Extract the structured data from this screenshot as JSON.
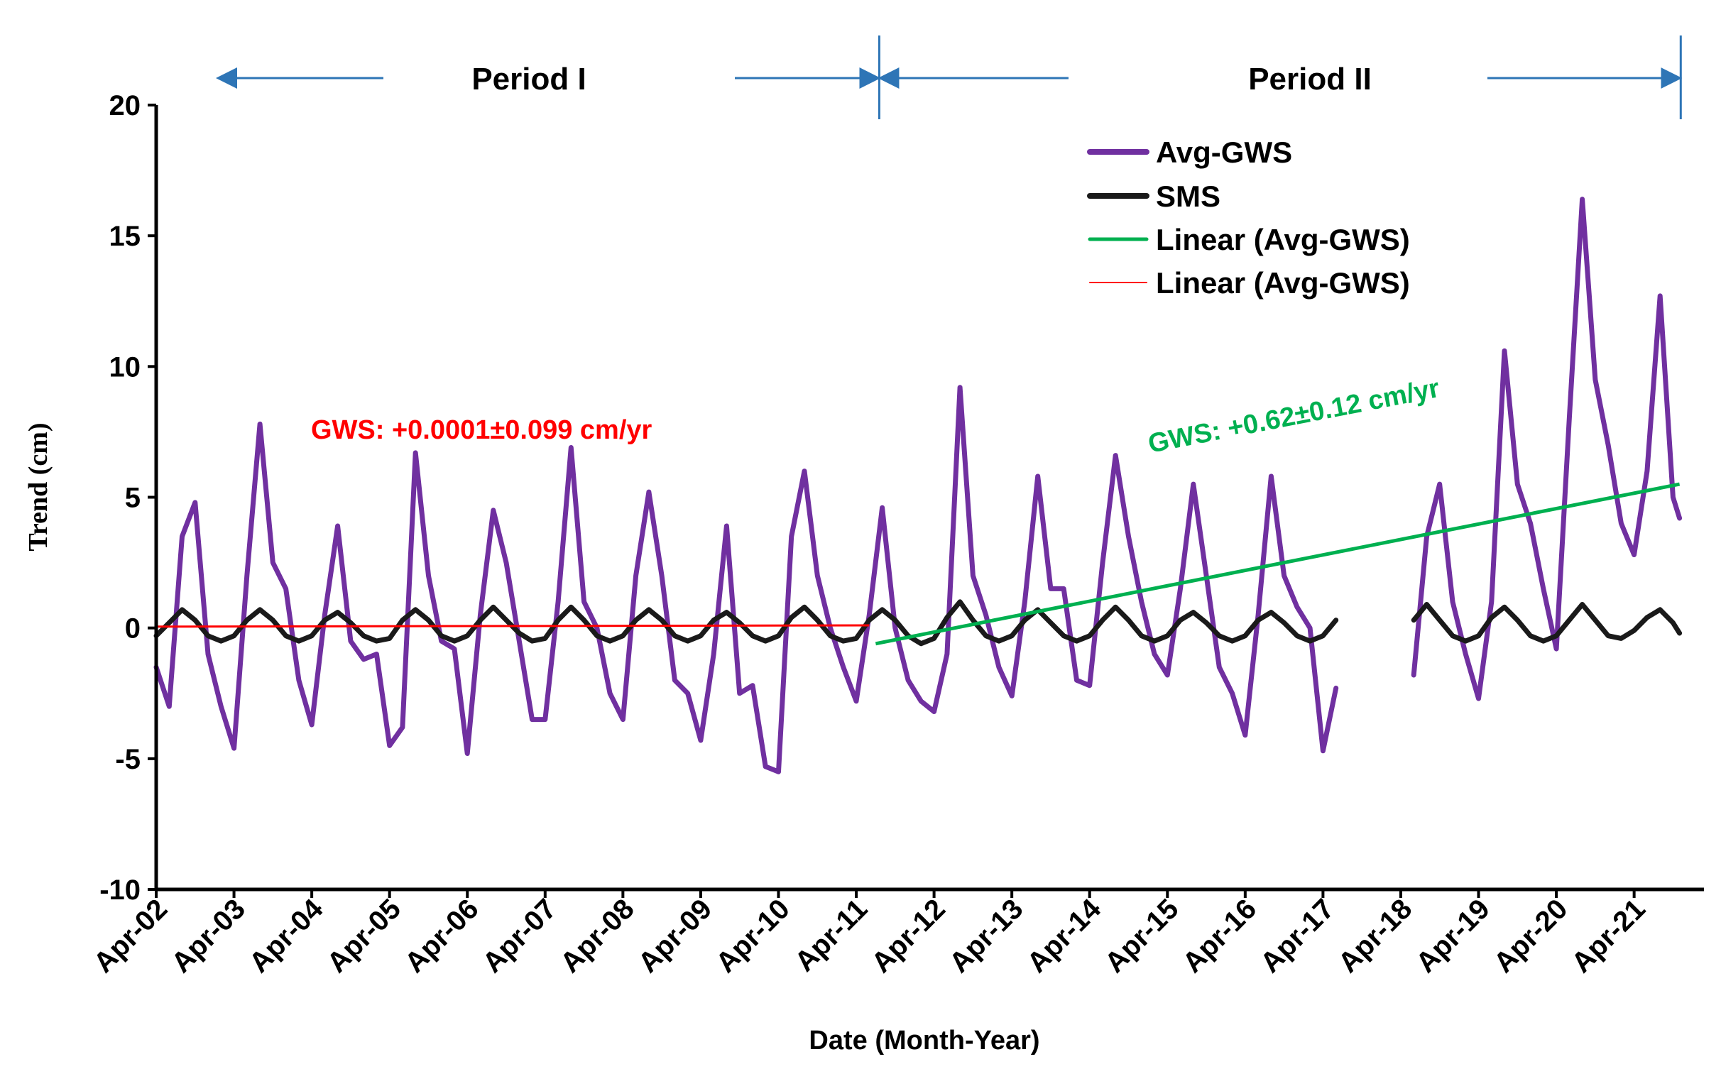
{
  "chart_data": {
    "type": "line",
    "title": "",
    "xlabel": "Date (Month-Year)",
    "ylabel": "Trend (cm)",
    "ylim": [
      -10,
      20
    ],
    "yticks": [
      -10,
      -5,
      0,
      5,
      10,
      15,
      20
    ],
    "xlim": [
      "2002-04",
      "2021-12"
    ],
    "xtick_labels": [
      "Apr-02",
      "Apr-03",
      "Apr-04",
      "Apr-05",
      "Apr-06",
      "Apr-07",
      "Apr-08",
      "Apr-09",
      "Apr-10",
      "Apr-11",
      "Apr-12",
      "Apr-13",
      "Apr-14",
      "Apr-15",
      "Apr-16",
      "Apr-17",
      "Apr-18",
      "Apr-19",
      "Apr-20",
      "Apr-21"
    ],
    "grid": false,
    "legend_position": "top-right",
    "legend": [
      {
        "label": "Avg-GWS",
        "color": "#7030A0"
      },
      {
        "label": "SMS",
        "color": "#1a1a1a"
      },
      {
        "label": "Linear (Avg-GWS)",
        "color": "#00B050"
      },
      {
        "label": "Linear (Avg-GWS)",
        "color": "#FF0000"
      }
    ],
    "periods": [
      {
        "label": "Period I",
        "start": "2002-04",
        "end": "2011-06"
      },
      {
        "label": "Period II",
        "start": "2011-07",
        "end": "2021-09"
      }
    ],
    "annotations": [
      {
        "text": "GWS: +0.0001±0.099  cm/yr",
        "color": "#FF0000"
      },
      {
        "text": "GWS: +0.62±0.12 cm/yr",
        "color": "#00B050"
      }
    ],
    "series": [
      {
        "name": "Avg-GWS",
        "color": "#7030A0",
        "segments": [
          [
            [
              "2002-04",
              -1.5
            ],
            [
              "2002-06",
              -3.0
            ],
            [
              "2002-08",
              3.5
            ],
            [
              "2002-10",
              4.8
            ],
            [
              "2002-12",
              -1.0
            ],
            [
              "2003-02",
              -3.0
            ],
            [
              "2003-04",
              -4.6
            ],
            [
              "2003-06",
              2.0
            ],
            [
              "2003-08",
              7.8
            ],
            [
              "2003-10",
              2.5
            ],
            [
              "2003-12",
              1.5
            ],
            [
              "2004-02",
              -2.0
            ],
            [
              "2004-04",
              -3.7
            ],
            [
              "2004-06",
              0.5
            ],
            [
              "2004-08",
              3.9
            ],
            [
              "2004-10",
              -0.5
            ],
            [
              "2004-12",
              -1.2
            ],
            [
              "2005-02",
              -1.0
            ],
            [
              "2005-04",
              -4.5
            ],
            [
              "2005-06",
              -3.8
            ],
            [
              "2005-08",
              6.7
            ],
            [
              "2005-10",
              2.0
            ],
            [
              "2005-12",
              -0.5
            ],
            [
              "2006-02",
              -0.8
            ],
            [
              "2006-04",
              -4.8
            ],
            [
              "2006-06",
              0.5
            ],
            [
              "2006-08",
              4.5
            ],
            [
              "2006-10",
              2.5
            ],
            [
              "2006-12",
              -0.5
            ],
            [
              "2007-02",
              -3.5
            ],
            [
              "2007-04",
              -3.5
            ],
            [
              "2007-06",
              1.0
            ],
            [
              "2007-08",
              6.9
            ],
            [
              "2007-10",
              1.0
            ],
            [
              "2007-12",
              0.0
            ],
            [
              "2008-02",
              -2.5
            ],
            [
              "2008-04",
              -3.5
            ],
            [
              "2008-06",
              2.0
            ],
            [
              "2008-08",
              5.2
            ],
            [
              "2008-10",
              2.0
            ],
            [
              "2008-12",
              -2.0
            ],
            [
              "2009-02",
              -2.5
            ],
            [
              "2009-04",
              -4.3
            ],
            [
              "2009-06",
              -1.0
            ],
            [
              "2009-08",
              3.9
            ],
            [
              "2009-10",
              -2.5
            ],
            [
              "2009-12",
              -2.2
            ],
            [
              "2010-02",
              -5.3
            ],
            [
              "2010-04",
              -5.5
            ],
            [
              "2010-06",
              3.5
            ],
            [
              "2010-08",
              6.0
            ],
            [
              "2010-10",
              2.0
            ],
            [
              "2010-12",
              0.0
            ],
            [
              "2011-02",
              -1.5
            ],
            [
              "2011-04",
              -2.8
            ],
            [
              "2011-06",
              0.5
            ],
            [
              "2011-08",
              4.6
            ],
            [
              "2011-10",
              0.0
            ],
            [
              "2011-12",
              -2.0
            ],
            [
              "2012-02",
              -2.8
            ],
            [
              "2012-04",
              -3.2
            ],
            [
              "2012-06",
              -1.0
            ],
            [
              "2012-08",
              9.2
            ],
            [
              "2012-10",
              2.0
            ],
            [
              "2012-12",
              0.5
            ],
            [
              "2013-02",
              -1.5
            ],
            [
              "2013-04",
              -2.6
            ],
            [
              "2013-06",
              1.0
            ],
            [
              "2013-08",
              5.8
            ],
            [
              "2013-10",
              1.5
            ],
            [
              "2013-12",
              1.5
            ],
            [
              "2014-02",
              -2.0
            ],
            [
              "2014-04",
              -2.2
            ],
            [
              "2014-06",
              2.5
            ],
            [
              "2014-08",
              6.6
            ],
            [
              "2014-10",
              3.5
            ],
            [
              "2014-12",
              1.0
            ],
            [
              "2015-02",
              -1.0
            ],
            [
              "2015-04",
              -1.8
            ],
            [
              "2015-06",
              1.5
            ],
            [
              "2015-08",
              5.5
            ],
            [
              "2015-10",
              2.0
            ],
            [
              "2015-12",
              -1.5
            ],
            [
              "2016-02",
              -2.5
            ],
            [
              "2016-04",
              -4.1
            ],
            [
              "2016-06",
              0.5
            ],
            [
              "2016-08",
              5.8
            ],
            [
              "2016-10",
              2.0
            ],
            [
              "2016-12",
              0.8
            ],
            [
              "2017-02",
              0.0
            ],
            [
              "2017-04",
              -4.7
            ],
            [
              "2017-06",
              -2.3
            ]
          ],
          [
            [
              "2018-06",
              -1.8
            ],
            [
              "2018-08",
              3.5
            ],
            [
              "2018-10",
              5.5
            ],
            [
              "2018-12",
              1.0
            ],
            [
              "2019-02",
              -1.0
            ],
            [
              "2019-04",
              -2.7
            ],
            [
              "2019-06",
              1.0
            ],
            [
              "2019-08",
              10.6
            ],
            [
              "2019-10",
              5.5
            ],
            [
              "2019-12",
              4.0
            ],
            [
              "2020-02",
              1.5
            ],
            [
              "2020-04",
              -0.8
            ],
            [
              "2020-06",
              8.0
            ],
            [
              "2020-08",
              16.4
            ],
            [
              "2020-10",
              9.5
            ],
            [
              "2020-12",
              7.0
            ],
            [
              "2021-02",
              4.0
            ],
            [
              "2021-04",
              2.8
            ],
            [
              "2021-06",
              6.0
            ],
            [
              "2021-08",
              12.7
            ],
            [
              "2021-10",
              5.0
            ],
            [
              "2021-11",
              4.2
            ]
          ]
        ]
      },
      {
        "name": "SMS",
        "color": "#1a1a1a",
        "segments": [
          [
            [
              "2002-04",
              -0.3
            ],
            [
              "2002-06",
              0.2
            ],
            [
              "2002-08",
              0.7
            ],
            [
              "2002-10",
              0.3
            ],
            [
              "2002-12",
              -0.3
            ],
            [
              "2003-02",
              -0.5
            ],
            [
              "2003-04",
              -0.3
            ],
            [
              "2003-06",
              0.3
            ],
            [
              "2003-08",
              0.7
            ],
            [
              "2003-10",
              0.3
            ],
            [
              "2003-12",
              -0.3
            ],
            [
              "2004-02",
              -0.5
            ],
            [
              "2004-04",
              -0.3
            ],
            [
              "2004-06",
              0.3
            ],
            [
              "2004-08",
              0.6
            ],
            [
              "2004-10",
              0.2
            ],
            [
              "2004-12",
              -0.3
            ],
            [
              "2005-02",
              -0.5
            ],
            [
              "2005-04",
              -0.4
            ],
            [
              "2005-06",
              0.3
            ],
            [
              "2005-08",
              0.7
            ],
            [
              "2005-10",
              0.3
            ],
            [
              "2005-12",
              -0.3
            ],
            [
              "2006-02",
              -0.5
            ],
            [
              "2006-04",
              -0.3
            ],
            [
              "2006-06",
              0.3
            ],
            [
              "2006-08",
              0.8
            ],
            [
              "2006-10",
              0.3
            ],
            [
              "2006-12",
              -0.2
            ],
            [
              "2007-02",
              -0.5
            ],
            [
              "2007-04",
              -0.4
            ],
            [
              "2007-06",
              0.3
            ],
            [
              "2007-08",
              0.8
            ],
            [
              "2007-10",
              0.3
            ],
            [
              "2007-12",
              -0.3
            ],
            [
              "2008-02",
              -0.5
            ],
            [
              "2008-04",
              -0.3
            ],
            [
              "2008-06",
              0.3
            ],
            [
              "2008-08",
              0.7
            ],
            [
              "2008-10",
              0.3
            ],
            [
              "2008-12",
              -0.3
            ],
            [
              "2009-02",
              -0.5
            ],
            [
              "2009-04",
              -0.3
            ],
            [
              "2009-06",
              0.3
            ],
            [
              "2009-08",
              0.6
            ],
            [
              "2009-10",
              0.2
            ],
            [
              "2009-12",
              -0.3
            ],
            [
              "2010-02",
              -0.5
            ],
            [
              "2010-04",
              -0.3
            ],
            [
              "2010-06",
              0.4
            ],
            [
              "2010-08",
              0.8
            ],
            [
              "2010-10",
              0.3
            ],
            [
              "2010-12",
              -0.3
            ],
            [
              "2011-02",
              -0.5
            ],
            [
              "2011-04",
              -0.4
            ],
            [
              "2011-06",
              0.3
            ],
            [
              "2011-08",
              0.7
            ],
            [
              "2011-10",
              0.3
            ],
            [
              "2011-12",
              -0.3
            ],
            [
              "2012-02",
              -0.6
            ],
            [
              "2012-04",
              -0.4
            ],
            [
              "2012-06",
              0.4
            ],
            [
              "2012-08",
              1.0
            ],
            [
              "2012-10",
              0.3
            ],
            [
              "2012-12",
              -0.3
            ],
            [
              "2013-02",
              -0.5
            ],
            [
              "2013-04",
              -0.3
            ],
            [
              "2013-06",
              0.3
            ],
            [
              "2013-08",
              0.7
            ],
            [
              "2013-10",
              0.2
            ],
            [
              "2013-12",
              -0.3
            ],
            [
              "2014-02",
              -0.5
            ],
            [
              "2014-04",
              -0.3
            ],
            [
              "2014-06",
              0.3
            ],
            [
              "2014-08",
              0.8
            ],
            [
              "2014-10",
              0.3
            ],
            [
              "2014-12",
              -0.3
            ],
            [
              "2015-02",
              -0.5
            ],
            [
              "2015-04",
              -0.3
            ],
            [
              "2015-06",
              0.3
            ],
            [
              "2015-08",
              0.6
            ],
            [
              "2015-10",
              0.2
            ],
            [
              "2015-12",
              -0.3
            ],
            [
              "2016-02",
              -0.5
            ],
            [
              "2016-04",
              -0.3
            ],
            [
              "2016-06",
              0.3
            ],
            [
              "2016-08",
              0.6
            ],
            [
              "2016-10",
              0.2
            ],
            [
              "2016-12",
              -0.3
            ],
            [
              "2017-02",
              -0.5
            ],
            [
              "2017-04",
              -0.3
            ],
            [
              "2017-06",
              0.3
            ]
          ],
          [
            [
              "2018-06",
              0.3
            ],
            [
              "2018-08",
              0.9
            ],
            [
              "2018-10",
              0.3
            ],
            [
              "2018-12",
              -0.3
            ],
            [
              "2019-02",
              -0.5
            ],
            [
              "2019-04",
              -0.3
            ],
            [
              "2019-06",
              0.4
            ],
            [
              "2019-08",
              0.8
            ],
            [
              "2019-10",
              0.3
            ],
            [
              "2019-12",
              -0.3
            ],
            [
              "2020-02",
              -0.5
            ],
            [
              "2020-04",
              -0.3
            ],
            [
              "2020-06",
              0.3
            ],
            [
              "2020-08",
              0.9
            ],
            [
              "2020-10",
              0.3
            ],
            [
              "2020-12",
              -0.3
            ],
            [
              "2021-02",
              -0.4
            ],
            [
              "2021-04",
              -0.1
            ],
            [
              "2021-06",
              0.4
            ],
            [
              "2021-08",
              0.7
            ],
            [
              "2021-10",
              0.2
            ],
            [
              "2021-11",
              -0.2
            ]
          ]
        ]
      },
      {
        "name": "Linear (Avg-GWS)",
        "color": "#00B050",
        "points": [
          [
            "2011-07",
            -0.6
          ],
          [
            "2021-11",
            5.5
          ]
        ]
      },
      {
        "name": "Linear (Avg-GWS)",
        "color": "#FF0000",
        "points": [
          [
            "2002-04",
            0.05
          ],
          [
            "2011-06",
            0.1
          ]
        ]
      }
    ]
  }
}
